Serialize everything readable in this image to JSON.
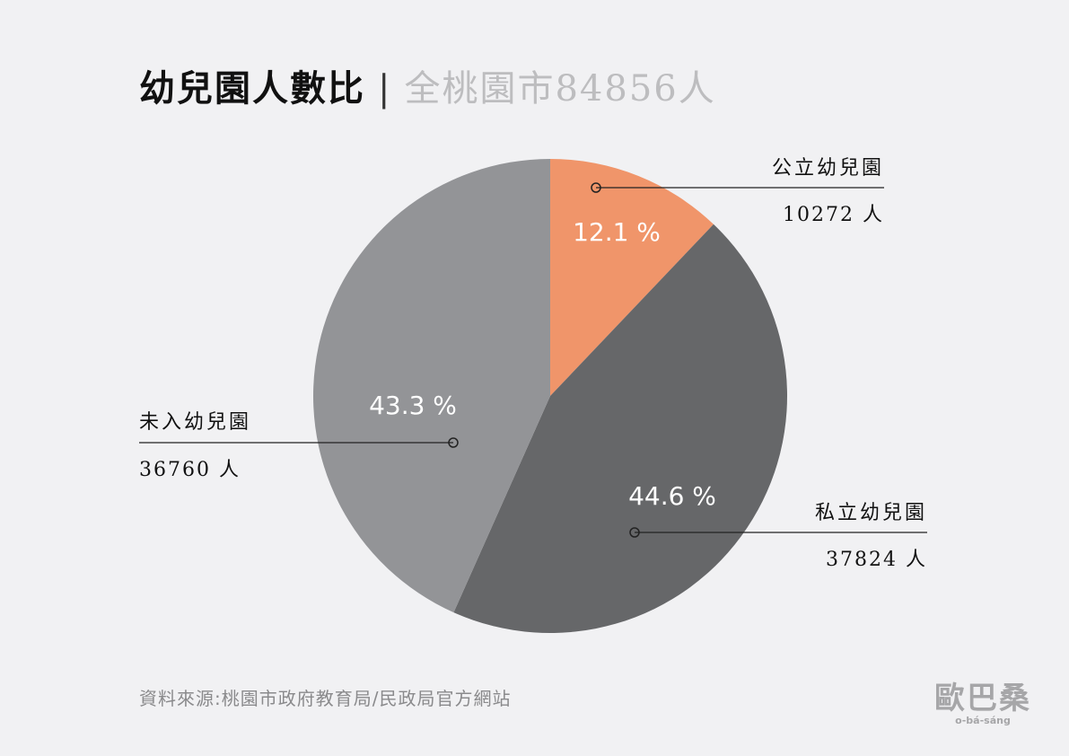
{
  "title": {
    "main": "幼兒園人數比",
    "separator": "|",
    "sub": "全桃園市84856人"
  },
  "chart_data": {
    "type": "pie",
    "title": "幼兒園人數比",
    "subtitle": "全桃園市84856人",
    "total": 84856,
    "slices": [
      {
        "name": "公立幼兒園",
        "value": 10272,
        "percent": 12.1,
        "percent_label": "12.1 %",
        "count_label": "10272 人",
        "color": "#f0956a"
      },
      {
        "name": "私立幼兒園",
        "value": 37824,
        "percent": 44.6,
        "percent_label": "44.6 %",
        "count_label": "37824 人",
        "color": "#666769"
      },
      {
        "name": "未入幼兒園",
        "value": 36760,
        "percent": 43.3,
        "percent_label": "43.3 %",
        "count_label": "36760 人",
        "color": "#939497"
      }
    ]
  },
  "source": "資料來源:桃園市政府教育局/民政局官方網站",
  "logo": {
    "mark": "歐巴桑",
    "romanization": "o-bá-sáng"
  }
}
